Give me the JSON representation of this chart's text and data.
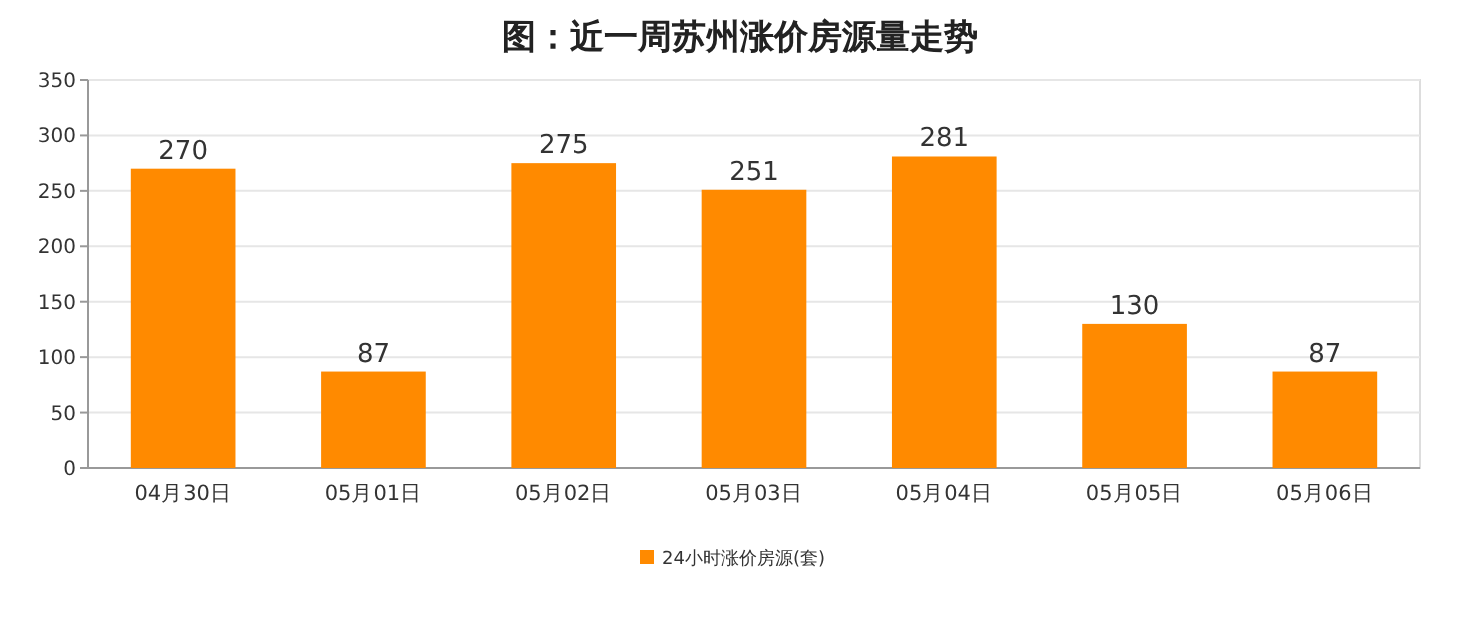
{
  "chart_data": {
    "type": "bar",
    "title": "图：近一周苏州涨价房源量走势",
    "categories": [
      "04月30日",
      "05月01日",
      "05月02日",
      "05月03日",
      "05月04日",
      "05月05日",
      "05月06日"
    ],
    "series": [
      {
        "name": "24小时涨价房源(套)",
        "color": "#ff8a00",
        "values": [
          270,
          87,
          275,
          251,
          281,
          130,
          87
        ]
      }
    ],
    "ylim": [
      0,
      350
    ],
    "yticks": [
      0,
      50,
      100,
      150,
      200,
      250,
      300,
      350
    ],
    "grid": "y",
    "legend": "bottom",
    "data_labels": true
  }
}
